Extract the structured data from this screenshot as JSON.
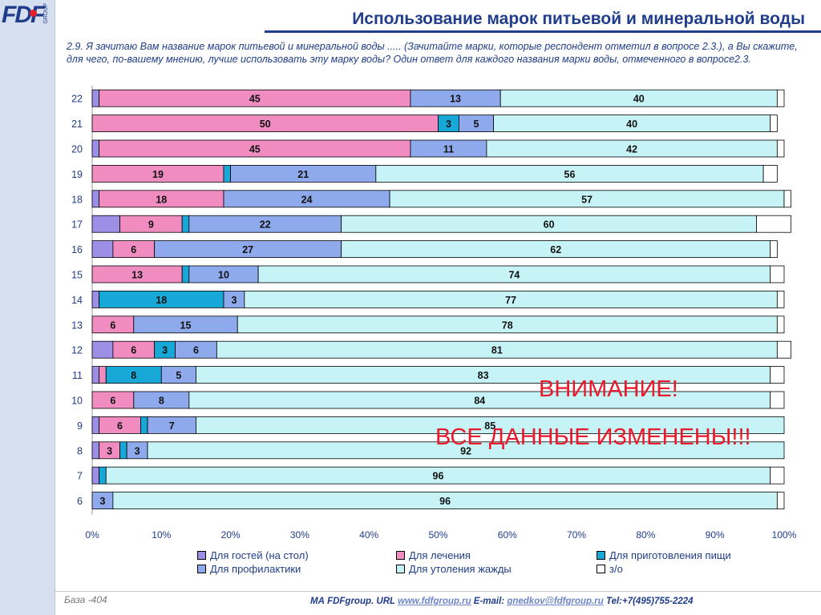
{
  "header": {
    "logo_text": "FDF",
    "logo_sub": "GROUP",
    "title": "Использование марок питьевой и минеральной воды",
    "question": "2.9. Я зачитаю Вам название  марок питьевой и минеральной воды ..... (Зачитайте марки, которые респондент отметил в вопросе 2.3.), а Вы скажите, для чего, по-вашему мнению, лучше использовать эту марку воды? Один ответ для каждого названия марки воды, отмеченного в вопросе2.3."
  },
  "notice": {
    "line1": "ВНИМАНИЕ!",
    "line2": "ВСЕ ДАННЫЕ ИЗМЕНЕНЫ!!!"
  },
  "footer": {
    "base": "База -404",
    "prefix": "МА FDFgroup. URL ",
    "url": "www.fdfgroup.ru",
    "email_label": " E-mail: ",
    "email": "gnedkov@fdfgroup.ru",
    "tel": " Tel:+7(495)755-2224"
  },
  "chart_data": {
    "type": "bar",
    "orientation": "horizontal",
    "stacked": true,
    "percent": true,
    "categories": [
      "22",
      "21",
      "20",
      "19",
      "18",
      "17",
      "16",
      "15",
      "14",
      "13",
      "12",
      "11",
      "10",
      "9",
      "8",
      "7",
      "6"
    ],
    "xlim": [
      0,
      100
    ],
    "xticks": [
      "0%",
      "10%",
      "20%",
      "30%",
      "40%",
      "50%",
      "60%",
      "70%",
      "80%",
      "90%",
      "100%"
    ],
    "legend_position": "bottom",
    "series": [
      {
        "name": "Для гостей (на стол)",
        "color": "#9e8fe6",
        "values": [
          1,
          0,
          1,
          0,
          1,
          4,
          3,
          0,
          1,
          0,
          3,
          1,
          0,
          1,
          1,
          1,
          0
        ]
      },
      {
        "name": "Для лечения",
        "color": "#f08cc0",
        "values": [
          45,
          50,
          45,
          19,
          18,
          9,
          6,
          13,
          0,
          6,
          6,
          1,
          6,
          6,
          3,
          0,
          0
        ]
      },
      {
        "name": "Для приготовления пищи",
        "color": "#18a8d8",
        "values": [
          0,
          3,
          0,
          1,
          0,
          1,
          0,
          1,
          18,
          0,
          3,
          8,
          0,
          1,
          1,
          1,
          0
        ]
      },
      {
        "name": "Для профилактики",
        "color": "#8eaaec",
        "values": [
          13,
          5,
          11,
          21,
          24,
          22,
          27,
          10,
          3,
          15,
          6,
          5,
          8,
          7,
          3,
          0,
          3
        ]
      },
      {
        "name": "Для утоления жажды",
        "color": "#c6f4f6",
        "values": [
          40,
          40,
          42,
          56,
          57,
          60,
          62,
          74,
          77,
          78,
          81,
          83,
          84,
          85,
          92,
          96,
          96
        ]
      },
      {
        "name": "з/о",
        "color": "#ffffff",
        "values": [
          1,
          1,
          1,
          2,
          1,
          5,
          1,
          2,
          1,
          1,
          2,
          2,
          2,
          0,
          0,
          2,
          1
        ]
      }
    ],
    "labels": [
      [
        null,
        "45",
        null,
        "13",
        "40",
        null
      ],
      [
        null,
        "50",
        "3",
        "5",
        "40",
        null
      ],
      [
        null,
        "45",
        null,
        "11",
        "42",
        null
      ],
      [
        null,
        "19",
        null,
        "21",
        "56",
        null
      ],
      [
        null,
        "18",
        null,
        "24",
        "57",
        null
      ],
      [
        null,
        "9",
        null,
        "22",
        "60",
        null
      ],
      [
        null,
        "6",
        null,
        "27",
        "62",
        null
      ],
      [
        null,
        "13",
        null,
        "10",
        "74",
        null
      ],
      [
        null,
        "0",
        "18",
        "3",
        "77",
        null
      ],
      [
        null,
        "6",
        null,
        "15",
        "78",
        null
      ],
      [
        null,
        "6",
        "3",
        "6",
        "81",
        null
      ],
      [
        null,
        null,
        "8",
        "5",
        "83",
        null
      ],
      [
        null,
        "6",
        null,
        "8",
        "84",
        null
      ],
      [
        null,
        "6",
        null,
        "7",
        "85",
        null
      ],
      [
        null,
        "3",
        null,
        "3",
        "92",
        null
      ],
      [
        null,
        null,
        null,
        null,
        "96",
        null
      ],
      [
        null,
        null,
        null,
        "3",
        "96",
        null
      ]
    ]
  }
}
